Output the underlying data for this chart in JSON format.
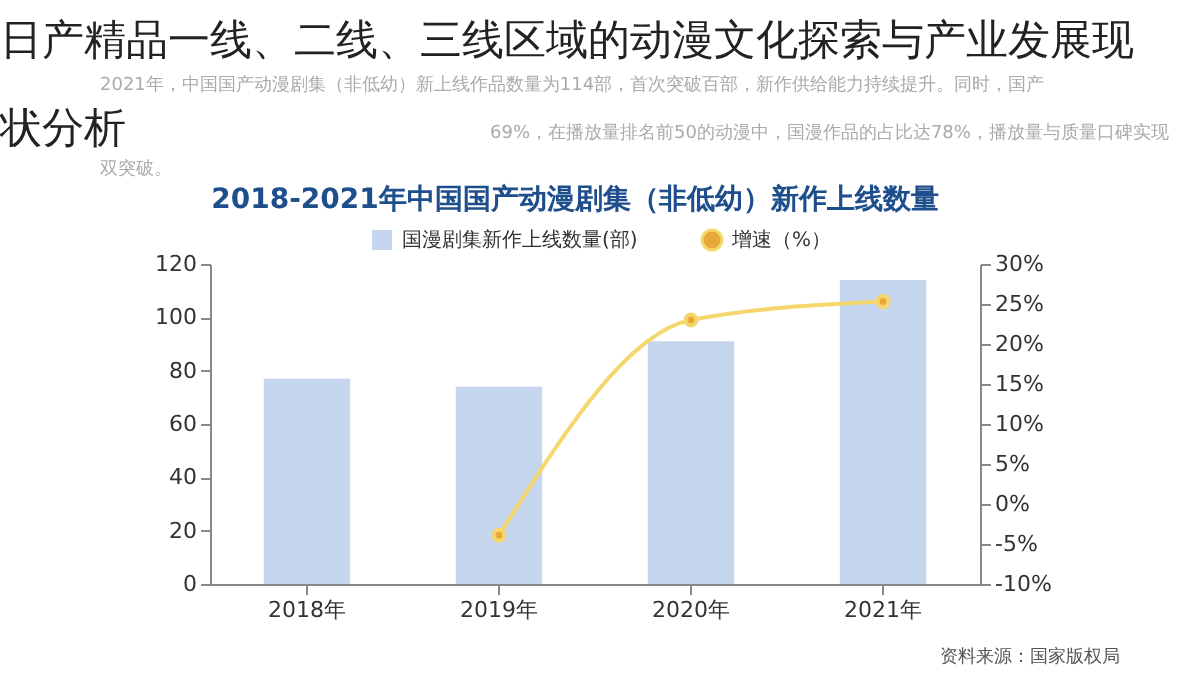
{
  "chart_data": {
    "type": "bar",
    "title": "2018-2021年中国国产动漫剧集（非低幼）新作上线数量",
    "categories": [
      "2018年",
      "2019年",
      "2020年",
      "2021年"
    ],
    "series": [
      {
        "name": "国漫剧集新作上线数量(部)",
        "color": "#c5d6ee",
        "values": [
          77,
          74,
          91,
          114
        ]
      },
      {
        "name": "增速（%）",
        "type": "line",
        "axis": "y2",
        "color": "#f5d76e",
        "values": [
          null,
          -3.9,
          23,
          25.3
        ]
      }
    ],
    "ylim": [
      0,
      120
    ],
    "yticks": [
      0,
      20,
      40,
      60,
      80,
      100,
      120
    ],
    "y2lim": [
      -10,
      30
    ],
    "y2ticks": [
      {
        "value": -10,
        "label": "-10%"
      },
      {
        "value": -5,
        "label": "-5%"
      },
      {
        "value": 0,
        "label": "0%"
      },
      {
        "value": 5,
        "label": "5%"
      },
      {
        "value": 10,
        "label": "10%"
      },
      {
        "value": 15,
        "label": "15%"
      },
      {
        "value": 20,
        "label": "20%"
      },
      {
        "value": 25,
        "label": "25%"
      },
      {
        "value": 30,
        "label": "30%"
      }
    ],
    "marker": "circle",
    "legend": "top",
    "grid": false,
    "annotations": [
      "日产精品一线、二线、三线区域的动漫文化探索与产业发展现状分析",
      "2021年，中国国产动漫剧集（非低幼）新上线作品数量为114部，首次突破百部，新作供给能力持续提升。同时，国产",
      "69%，在播放量排名前50的动漫中，国漫作品的占比达78%，播放量与质量口碑实现",
      "双突破。",
      "资料来源：国家版权局"
    ]
  }
}
